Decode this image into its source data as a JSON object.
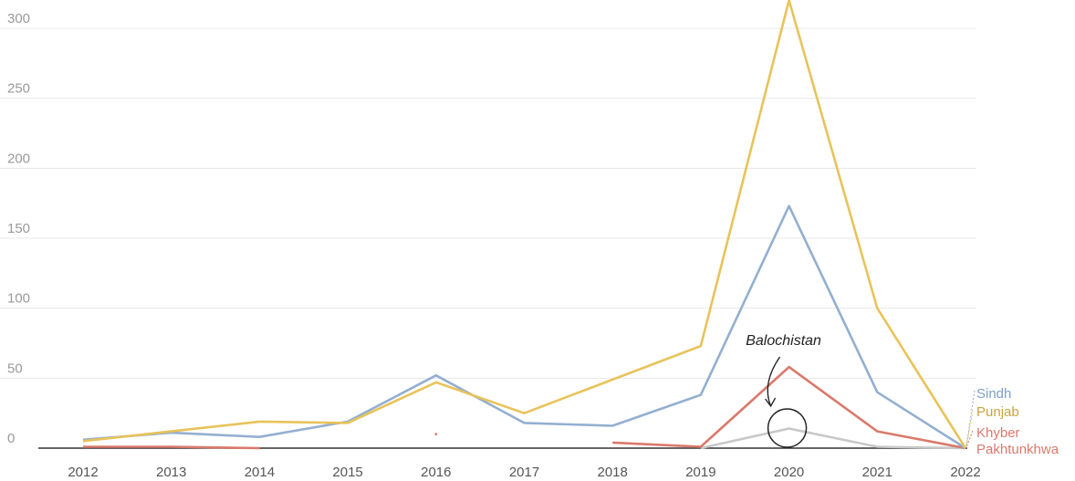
{
  "chart_data": {
    "type": "line",
    "title": "",
    "xlabel": "",
    "ylabel": "",
    "x": [
      2012,
      2013,
      2014,
      2015,
      2016,
      2017,
      2018,
      2019,
      2020,
      2021,
      2022
    ],
    "ylim": [
      0,
      320
    ],
    "yticks": [
      0,
      50,
      100,
      150,
      200,
      250,
      300
    ],
    "grid": true,
    "legend": "direct labels at right",
    "series": [
      {
        "name": "Punjab",
        "color": "#e8c35a",
        "values": [
          5,
          12,
          19,
          18,
          47,
          25,
          49,
          73,
          320,
          100,
          0
        ]
      },
      {
        "name": "Sindh",
        "color": "#93afd0",
        "values": [
          6,
          11,
          8,
          19,
          52,
          18,
          16,
          38,
          173,
          40,
          0
        ]
      },
      {
        "name": "Khyber Pakhtunkhwa",
        "color": "#d97a6c",
        "values": [
          1,
          1,
          0,
          null,
          10,
          null,
          4,
          1,
          58,
          12,
          0
        ]
      },
      {
        "name": "Balochistan",
        "color": "#c8c8c8",
        "values": [
          null,
          null,
          null,
          null,
          null,
          null,
          null,
          0,
          14,
          1,
          0
        ]
      }
    ],
    "labels": {
      "sindh": "Sindh",
      "punjab": "Punjab",
      "khyber_line1": "Khyber",
      "khyber_line2": "Pakhtunkhwa"
    },
    "annotation": "Balochistan"
  }
}
